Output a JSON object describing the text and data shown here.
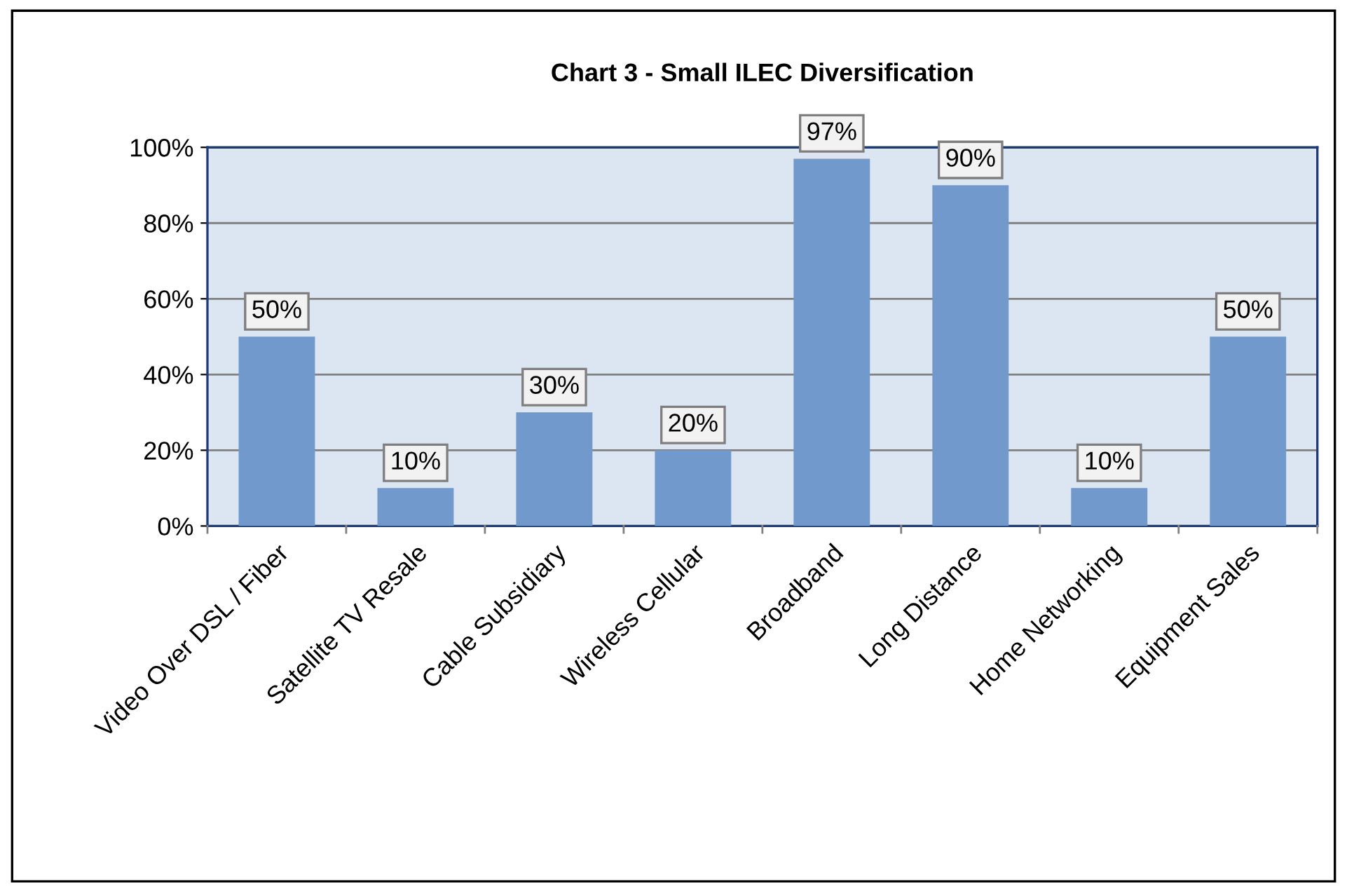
{
  "chart_data": {
    "type": "bar",
    "title": "Chart 3 - Small ILEC Diversification",
    "categories": [
      "Video Over DSL / Fiber",
      "Satellite TV Resale",
      "Cable Subsidiary",
      "Wireless Cellular",
      "Broadband",
      "Long Distance",
      "Home Networking",
      "Equipment Sales"
    ],
    "values": [
      50,
      10,
      30,
      20,
      97,
      90,
      10,
      50
    ],
    "value_labels": [
      "50%",
      "10%",
      "30%",
      "20%",
      "97%",
      "90%",
      "10%",
      "50%"
    ],
    "color": "#7199cc",
    "ylim": [
      0,
      100
    ],
    "yticks": [
      {
        "value": 0,
        "label": "0%"
      },
      {
        "value": 20,
        "label": "20%"
      },
      {
        "value": 40,
        "label": "40%"
      },
      {
        "value": 60,
        "label": "60%"
      },
      {
        "value": 80,
        "label": "80%"
      },
      {
        "value": 100,
        "label": "100%"
      }
    ],
    "grid": "y",
    "legend": false
  }
}
